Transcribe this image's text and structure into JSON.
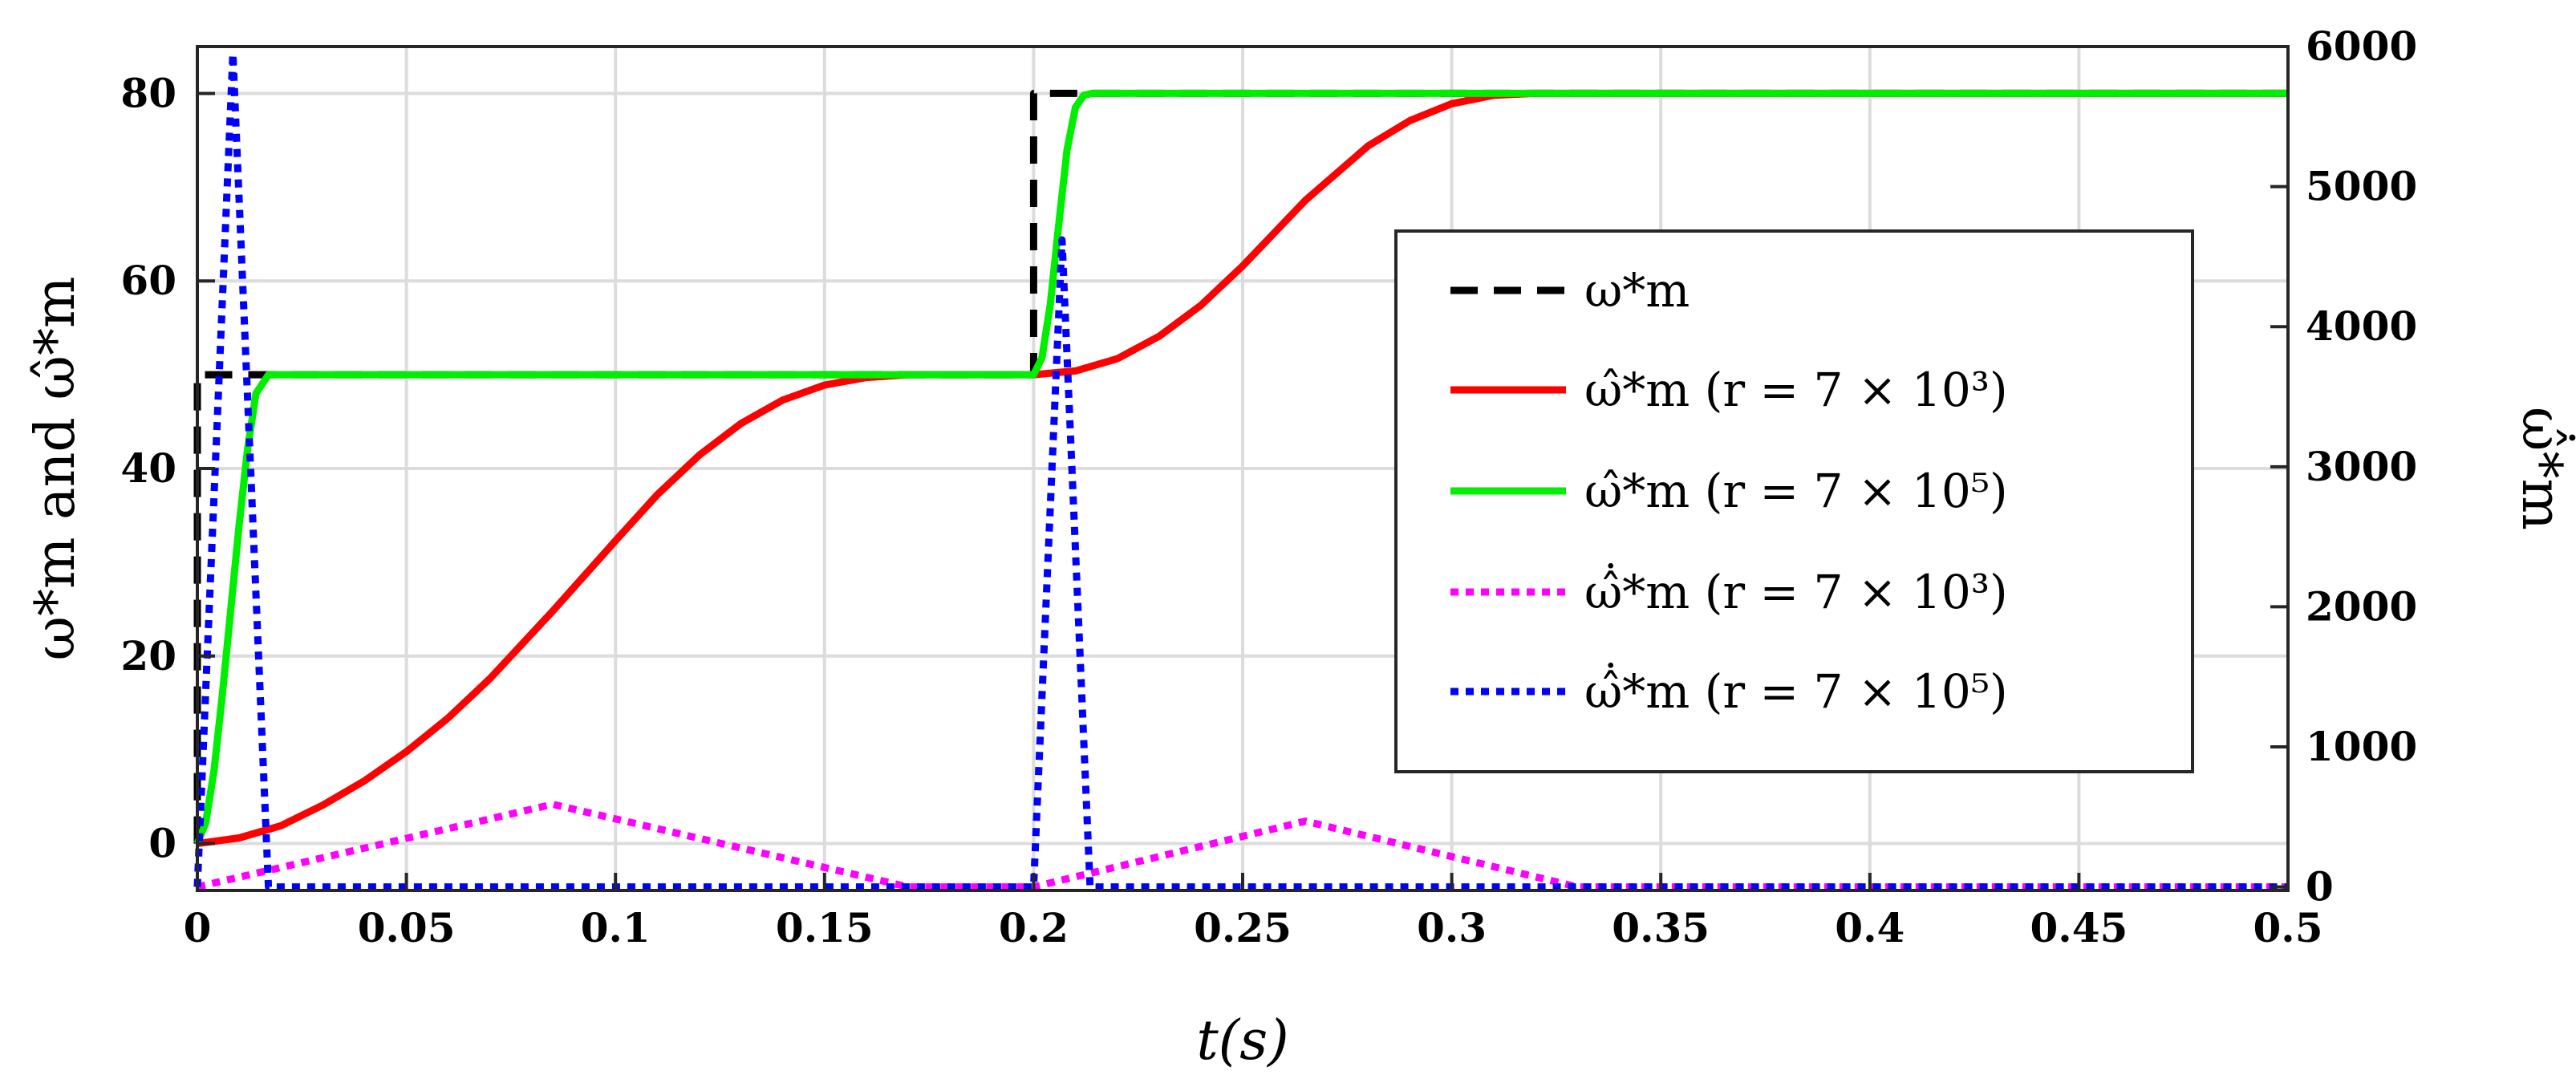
{
  "chart_data": {
    "type": "line",
    "title": "",
    "xlabel": "t(s)",
    "ylabel_left": "ω*m and ω̂*m",
    "ylabel_right": "ω̂̇*m",
    "xlim": [
      0,
      0.5
    ],
    "ylim_left": [
      -5,
      85
    ],
    "ylim_right": [
      -25,
      6000
    ],
    "xticks": [
      0,
      0.05,
      0.1,
      0.15,
      0.2,
      0.25,
      0.3,
      0.35,
      0.4,
      0.45,
      0.5
    ],
    "xtick_labels": [
      "0",
      "0.05",
      "0.1",
      "0.15",
      "0.2",
      "0.25",
      "0.3",
      "0.35",
      "0.4",
      "0.45",
      "0.5"
    ],
    "yticks_left": [
      0,
      20,
      40,
      60,
      80
    ],
    "ytick_labels_left": [
      "0",
      "20",
      "40",
      "60",
      "80"
    ],
    "yticks_right": [
      0,
      1000,
      2000,
      3000,
      4000,
      5000,
      6000
    ],
    "ytick_labels_right": [
      "0",
      "1000",
      "2000",
      "3000",
      "4000",
      "5000",
      "6000"
    ],
    "grid": true,
    "legend_position": "center-right",
    "series": [
      {
        "name": "ω*m",
        "legend_label": "ω*m",
        "axis": "left",
        "color": "#000000",
        "style": "dashed",
        "x": [
          0,
          0,
          0.2,
          0.2,
          0.5
        ],
        "y": [
          0,
          50,
          50,
          80,
          80
        ]
      },
      {
        "name": "ω̂*m (r = 7 × 10^3)",
        "legend_label": "ω̂*m (r = 7 × 10³)",
        "axis": "left",
        "color": "#ff0000",
        "style": "solid",
        "x": [
          0,
          0.01,
          0.02,
          0.03,
          0.04,
          0.05,
          0.06,
          0.07,
          0.085,
          0.1,
          0.11,
          0.12,
          0.13,
          0.14,
          0.15,
          0.16,
          0.17,
          0.2,
          0.21,
          0.22,
          0.23,
          0.24,
          0.25,
          0.265,
          0.28,
          0.29,
          0.3,
          0.31,
          0.32,
          0.33,
          0.5
        ],
        "y": [
          0,
          0.6,
          1.9,
          4.1,
          6.7,
          9.8,
          13.4,
          17.6,
          24.8,
          32.3,
          37.2,
          41.4,
          44.8,
          47.3,
          48.9,
          49.7,
          50,
          50,
          50.4,
          51.7,
          54.1,
          57.4,
          61.6,
          68.6,
          74.4,
          77.1,
          78.9,
          79.8,
          80,
          80,
          80
        ]
      },
      {
        "name": "ω̂*m (r = 7 × 10^5)",
        "legend_label": "ω̂*m (r = 7 × 10⁵)",
        "axis": "left",
        "color": "#00ee00",
        "style": "solid",
        "x": [
          0,
          0.002,
          0.004,
          0.006,
          0.008,
          0.01,
          0.012,
          0.014,
          0.017,
          0.2,
          0.202,
          0.204,
          0.206,
          0.208,
          0.21,
          0.212,
          0.214,
          0.5
        ],
        "y": [
          0,
          2.2,
          7.8,
          16,
          25,
          34,
          42,
          48,
          50,
          50,
          51.8,
          57.5,
          66,
          74,
          78.5,
          79.8,
          80,
          80
        ]
      },
      {
        "name": "ω̂̇*m (r = 7 × 10^3)",
        "legend_label": "ω̂̇*m (r = 7 × 10³)",
        "axis": "right",
        "color": "#ff00ff",
        "style": "dotted",
        "x": [
          0,
          0.085,
          0.17,
          0.2,
          0.265,
          0.33,
          0.5
        ],
        "y": [
          0,
          590,
          0,
          0,
          470,
          0,
          0
        ]
      },
      {
        "name": "ω̂̇*m (r = 7 × 10^5)",
        "legend_label": "ω̂̇*m (r = 7 × 10⁵)",
        "axis": "right",
        "color": "#0000ff",
        "style": "dotted",
        "x": [
          0,
          0.0085,
          0.017,
          0.2,
          0.2068,
          0.2135,
          0.5
        ],
        "y": [
          0,
          5950,
          0,
          0,
          4620,
          0,
          0
        ]
      }
    ]
  }
}
